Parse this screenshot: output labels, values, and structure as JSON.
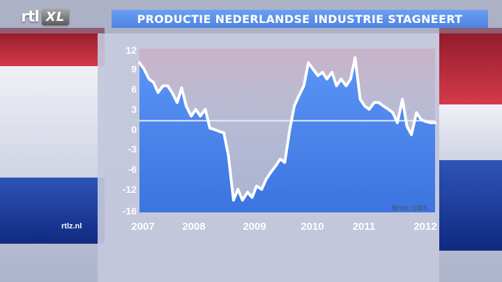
{
  "header": {
    "logo_rtl": "rtl",
    "logo_xl": "XL",
    "title": "PRODUCTIE NEDERLANDSE INDUSTRIE STAGNEERT"
  },
  "footer": {
    "site": "rtlz.nl"
  },
  "colors": {
    "title_bar": "#5a8ee8",
    "plot_top": "#b8b8d0",
    "area_fill": "#4d8af0",
    "line": "#ffffff",
    "flag_red": "#c2283a",
    "flag_blue": "#1a3a9a"
  },
  "chart_data": {
    "type": "line",
    "title": "PRODUCTIE NEDERLANDSE INDUSTRIE STAGNEERT",
    "xlabel": "",
    "ylabel": "",
    "source": "Bron: CBS",
    "x_ticks": [
      "2007",
      "2008",
      "2009",
      "2010",
      "2011",
      "2012"
    ],
    "y_ticks": [
      "12",
      "9",
      "6",
      "3",
      "0",
      "-3",
      "-6",
      "-12",
      "-16"
    ],
    "y_tick_values": [
      12,
      9,
      6,
      3,
      0,
      -3,
      -6,
      -12,
      -16
    ],
    "xlim": [
      2007.0,
      2012.25
    ],
    "reference_value": 1.3,
    "series": [
      {
        "x": [
          2007.0,
          2007.08,
          2007.17,
          2007.25,
          2007.33,
          2007.42,
          2007.5,
          2007.58,
          2007.67,
          2007.75,
          2007.83,
          2007.92,
          2008.0,
          2008.08,
          2008.17,
          2008.25,
          2008.33,
          2008.42,
          2008.5,
          2008.58,
          2008.67,
          2008.75,
          2008.83,
          2008.92,
          2009.0,
          2009.08,
          2009.17,
          2009.25,
          2009.33,
          2009.42,
          2009.5,
          2009.58,
          2009.67,
          2009.75,
          2009.83,
          2009.92,
          2010.0,
          2010.08,
          2010.17,
          2010.25,
          2010.33,
          2010.42,
          2010.5,
          2010.58,
          2010.67,
          2010.75,
          2010.83,
          2010.92,
          2011.0,
          2011.08,
          2011.17,
          2011.25,
          2011.33,
          2011.42,
          2011.5,
          2011.58,
          2011.67,
          2011.75,
          2011.83,
          2011.92,
          2012.0,
          2012.08,
          2012.17,
          2012.25
        ],
        "values": [
          10.0,
          9.0,
          7.5,
          7.0,
          5.5,
          6.5,
          6.5,
          5.5,
          4.0,
          6.2,
          3.5,
          2.0,
          3.0,
          2.0,
          3.0,
          0.2,
          0.0,
          -0.3,
          -0.5,
          -4.0,
          -14.0,
          -12.0,
          -14.0,
          -12.5,
          -13.5,
          -11.0,
          -12.0,
          -9.0,
          -7.0,
          -5.5,
          -4.5,
          -5.0,
          0.0,
          3.5,
          5.0,
          6.5,
          10.0,
          9.0,
          8.0,
          8.5,
          7.5,
          8.5,
          6.5,
          7.5,
          6.5,
          7.5,
          10.8,
          4.5,
          3.5,
          3.0,
          4.0,
          4.0,
          3.5,
          3.0,
          2.5,
          1.0,
          4.5,
          0.5,
          -0.8,
          2.5,
          1.5,
          1.2,
          1.0,
          1.0
        ]
      }
    ]
  }
}
